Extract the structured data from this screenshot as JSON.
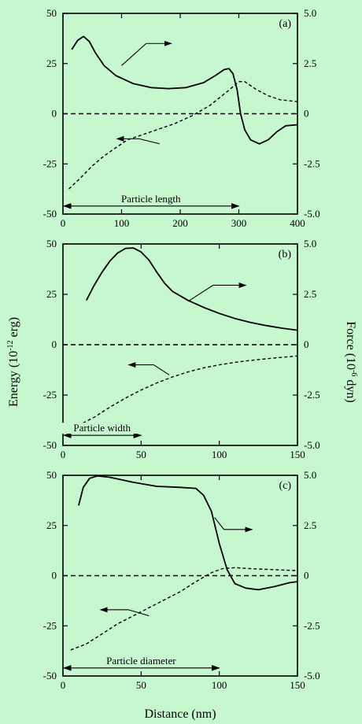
{
  "background_color": "#c6f7cf",
  "common": {
    "xlabel": "Distance (nm)",
    "ylabel_left": "Energy (10",
    "ylabel_left_exp": "-12",
    "ylabel_left_unit": " erg)",
    "ylabel_right": "Force (10",
    "ylabel_right_exp": "-6",
    "ylabel_right_unit": " dyn)"
  },
  "chart_data": [
    {
      "type": "line",
      "panel": "(a)",
      "xlim": [
        0,
        400
      ],
      "ylim_left": [
        -50,
        50
      ],
      "ylim_right": [
        -5.0,
        5.0
      ],
      "x_ticks": [
        "0",
        "100",
        "200",
        "300",
        "400"
      ],
      "y_ticks_left": [
        "50",
        "25",
        "0",
        "-25",
        "-50"
      ],
      "y_ticks_right": [
        "5.0",
        "2.5",
        "0",
        "-2.5",
        "-5.0"
      ],
      "annotation": {
        "text": "Particle length",
        "x_from": 0,
        "x_to": 300,
        "y": -46
      },
      "series": [
        {
          "axis": "right",
          "style": "solid",
          "points": [
            [
              15,
              3.2
            ],
            [
              25,
              3.65
            ],
            [
              35,
              3.85
            ],
            [
              45,
              3.6
            ],
            [
              55,
              3.05
            ],
            [
              70,
              2.4
            ],
            [
              90,
              1.9
            ],
            [
              120,
              1.5
            ],
            [
              150,
              1.3
            ],
            [
              180,
              1.25
            ],
            [
              210,
              1.3
            ],
            [
              240,
              1.55
            ],
            [
              260,
              1.9
            ],
            [
              275,
              2.2
            ],
            [
              283,
              2.25
            ],
            [
              290,
              2.0
            ],
            [
              297,
              1.2
            ],
            [
              303,
              0
            ],
            [
              310,
              -0.8
            ],
            [
              320,
              -1.3
            ],
            [
              335,
              -1.5
            ],
            [
              350,
              -1.3
            ],
            [
              365,
              -0.9
            ],
            [
              380,
              -0.6
            ],
            [
              400,
              -0.55
            ]
          ]
        },
        {
          "axis": "left",
          "style": "dashed",
          "points": [
            [
              10,
              -37.5
            ],
            [
              30,
              -32
            ],
            [
              50,
              -26
            ],
            [
              70,
              -21
            ],
            [
              90,
              -17
            ],
            [
              110,
              -13
            ],
            [
              130,
              -11
            ],
            [
              160,
              -8
            ],
            [
              190,
              -5
            ],
            [
              220,
              -1
            ],
            [
              250,
              4
            ],
            [
              280,
              11
            ],
            [
              300,
              16
            ],
            [
              310,
              16
            ],
            [
              330,
              12
            ],
            [
              350,
              9
            ],
            [
              370,
              7
            ],
            [
              400,
              6
            ]
          ]
        }
      ],
      "arrows": [
        {
          "from": [
            142,
            3.5
          ],
          "to": [
            185,
            3.5
          ]
        },
        {
          "from": [
            130,
            -12.5
          ],
          "to": [
            92,
            -12.5
          ]
        }
      ],
      "leaders": [
        {
          "from": [
            100,
            2.4
          ],
          "to": [
            142,
            3.5
          ]
        },
        {
          "from": [
            165,
            -15
          ],
          "to": [
            130,
            -12.5
          ]
        }
      ]
    },
    {
      "type": "line",
      "panel": "(b)",
      "xlim": [
        0,
        150
      ],
      "ylim_left": [
        -50,
        50
      ],
      "ylim_right": [
        -5.0,
        5.0
      ],
      "x_ticks": [
        "0",
        "50",
        "100",
        "150"
      ],
      "y_ticks_left": [
        "50",
        "25",
        "0",
        "-25",
        "-50"
      ],
      "y_ticks_right": [
        "5.0",
        "2.5",
        "0",
        "-2.5",
        "-5.0"
      ],
      "annotation": {
        "text": "Particle width",
        "x_from": 0,
        "x_to": 50,
        "y": -45
      },
      "series": [
        {
          "axis": "right",
          "style": "solid",
          "points": [
            [
              15,
              2.2
            ],
            [
              20,
              2.95
            ],
            [
              25,
              3.6
            ],
            [
              30,
              4.15
            ],
            [
              35,
              4.55
            ],
            [
              40,
              4.78
            ],
            [
              45,
              4.8
            ],
            [
              50,
              4.6
            ],
            [
              55,
              4.2
            ],
            [
              60,
              3.6
            ],
            [
              65,
              3.05
            ],
            [
              70,
              2.65
            ],
            [
              80,
              2.2
            ],
            [
              90,
              1.85
            ],
            [
              100,
              1.55
            ],
            [
              110,
              1.3
            ],
            [
              120,
              1.1
            ],
            [
              130,
              0.95
            ],
            [
              140,
              0.82
            ],
            [
              150,
              0.72
            ]
          ]
        },
        {
          "axis": "left",
          "style": "dashed",
          "points": [
            [
              3,
              -42
            ],
            [
              10,
              -40
            ],
            [
              20,
              -36
            ],
            [
              30,
              -31
            ],
            [
              40,
              -26.5
            ],
            [
              50,
              -22.5
            ],
            [
              60,
              -19
            ],
            [
              70,
              -16
            ],
            [
              80,
              -13.5
            ],
            [
              90,
              -11.5
            ],
            [
              100,
              -10
            ],
            [
              110,
              -8.8
            ],
            [
              120,
              -7.8
            ],
            [
              130,
              -7
            ],
            [
              140,
              -6.3
            ],
            [
              150,
              -5.6
            ]
          ]
        }
      ],
      "arrows": [
        {
          "from": [
            96,
            2.95
          ],
          "to": [
            117,
            2.95
          ]
        },
        {
          "from": [
            58,
            -10
          ],
          "to": [
            42,
            -10
          ]
        }
      ],
      "leaders": [
        {
          "from": [
            80,
            2.15
          ],
          "to": [
            96,
            2.95
          ]
        },
        {
          "from": [
            68,
            -15
          ],
          "to": [
            58,
            -10
          ]
        }
      ]
    },
    {
      "type": "line",
      "panel": "(c)",
      "xlim": [
        0,
        150
      ],
      "ylim_left": [
        -50,
        50
      ],
      "ylim_right": [
        -5.0,
        5.0
      ],
      "x_ticks": [
        "0",
        "50",
        "100",
        "150"
      ],
      "y_ticks_left": [
        "50",
        "25",
        "0",
        "-25",
        "-50"
      ],
      "y_ticks_right": [
        "5.0",
        "2.5",
        "0",
        "-2.5",
        "-5.0"
      ],
      "annotation": {
        "text": "Particle diameter",
        "x_from": 0,
        "x_to": 100,
        "y": -46
      },
      "series": [
        {
          "axis": "right",
          "style": "solid",
          "points": [
            [
              10,
              3.5
            ],
            [
              13,
              4.4
            ],
            [
              17,
              4.85
            ],
            [
              22,
              4.97
            ],
            [
              30,
              4.9
            ],
            [
              45,
              4.65
            ],
            [
              60,
              4.45
            ],
            [
              75,
              4.4
            ],
            [
              85,
              4.35
            ],
            [
              90,
              4.0
            ],
            [
              95,
              3.2
            ],
            [
              100,
              1.6
            ],
            [
              105,
              0.3
            ],
            [
              110,
              -0.4
            ],
            [
              117,
              -0.62
            ],
            [
              125,
              -0.7
            ],
            [
              135,
              -0.55
            ],
            [
              145,
              -0.35
            ],
            [
              150,
              -0.3
            ]
          ]
        },
        {
          "axis": "left",
          "style": "dashed",
          "points": [
            [
              5,
              -37
            ],
            [
              15,
              -34
            ],
            [
              25,
              -29
            ],
            [
              35,
              -24
            ],
            [
              45,
              -20
            ],
            [
              55,
              -16
            ],
            [
              65,
              -12
            ],
            [
              75,
              -8
            ],
            [
              85,
              -3
            ],
            [
              95,
              1.5
            ],
            [
              102,
              3.5
            ],
            [
              110,
              4
            ],
            [
              120,
              3.5
            ],
            [
              135,
              3
            ],
            [
              150,
              2.5
            ]
          ]
        }
      ],
      "arrows": [
        {
          "from": [
            103,
            2.3
          ],
          "to": [
            121,
            2.3
          ]
        },
        {
          "from": [
            42,
            -17
          ],
          "to": [
            24,
            -17
          ]
        }
      ],
      "leaders": [
        {
          "from": [
            97,
            2.9
          ],
          "to": [
            103,
            2.3
          ]
        },
        {
          "from": [
            55,
            -20
          ],
          "to": [
            42,
            -17
          ]
        }
      ]
    }
  ]
}
